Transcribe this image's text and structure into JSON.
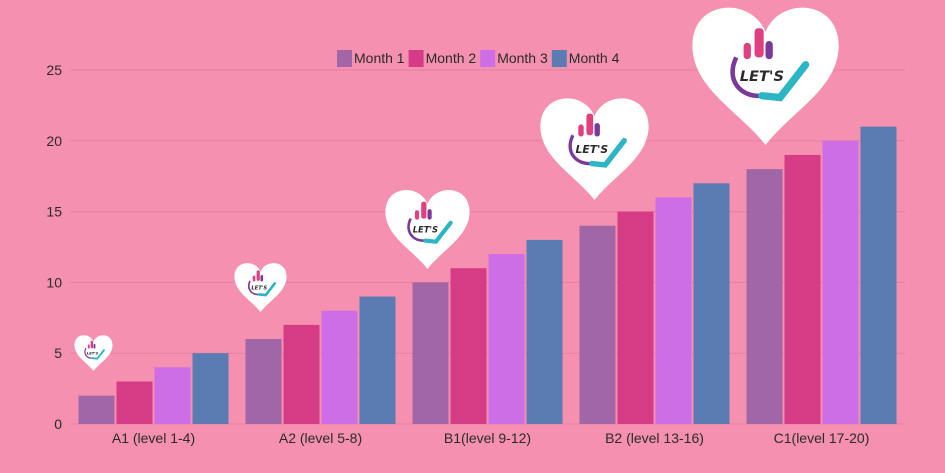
{
  "colors": {
    "background": "#f590b0",
    "gridline": "#e77f9f",
    "series": [
      "#a066a6",
      "#d63b86",
      "#cd6ee6",
      "#5b7cb3"
    ],
    "heart": "#ffffff",
    "logo_pink": "#e0407f",
    "logo_teal": "#2bb5c5",
    "logo_purple": "#7a3a9a"
  },
  "logo": {
    "text": "LET'S",
    "icon": "hand-pointing-up-speech-bubble-icon"
  },
  "chart_data": {
    "type": "bar",
    "title": "",
    "xlabel": "",
    "ylabel": "",
    "categories": [
      "A1 (level 1-4)",
      "A2 (level 5-8)",
      "B1(level 9-12)",
      "B2 (level 13-16)",
      "C1(level 17-20)"
    ],
    "series": [
      {
        "name": "Month 1",
        "values": [
          2,
          6,
          10,
          14,
          18
        ]
      },
      {
        "name": "Month 2",
        "values": [
          3,
          7,
          11,
          15,
          19
        ]
      },
      {
        "name": "Month 3",
        "values": [
          4,
          8,
          12,
          16,
          20
        ]
      },
      {
        "name": "Month 4",
        "values": [
          5,
          9,
          13,
          17,
          21
        ]
      }
    ],
    "ylim": [
      0,
      25
    ],
    "yticks": [
      0,
      5,
      10,
      15,
      20,
      25
    ],
    "grid": true,
    "legend_position": "top-center"
  }
}
